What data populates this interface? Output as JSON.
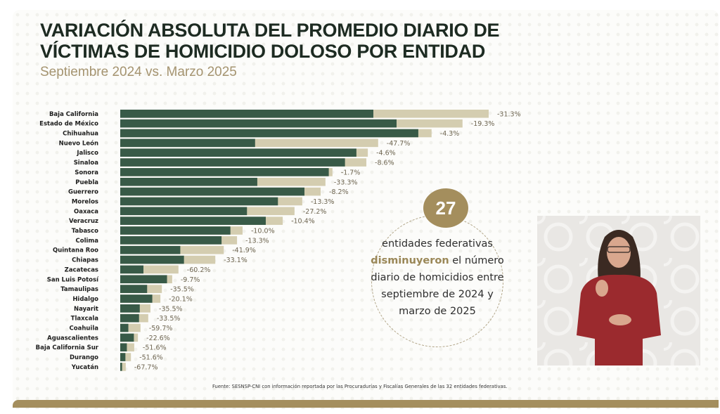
{
  "header": {
    "title_line1": "VARIACIÓN ABSOLUTA DEL PROMEDIO DIARIO DE",
    "title_line2": "VÍCTIMAS DE HOMICIDIO DOLOSO POR ENTIDAD",
    "subtitle": "Septiembre 2024 vs. Marzo 2025"
  },
  "chart_data": {
    "type": "bar",
    "orientation": "horizontal",
    "title": "Variación absoluta del promedio diario de víctimas de homicidio doloso por entidad",
    "subtitle": "Septiembre 2024 vs. Marzo 2025",
    "xlabel": "",
    "ylabel": "",
    "value_units": "relative index (axis not labeled; Baja California Sep 2024 = 100)",
    "xlim": [
      0,
      100
    ],
    "grid": false,
    "legend": "none",
    "categories": [
      "Baja California",
      "Estado de México",
      "Chihuahua",
      "Nuevo León",
      "Jalisco",
      "Sinaloa",
      "Sonora",
      "Puebla",
      "Guerrero",
      "Morelos",
      "Oaxaca",
      "Veracruz",
      "Tabasco",
      "Colima",
      "Quintana Roo",
      "Chiapas",
      "Zacatecas",
      "San Luis Potosí",
      "Tamaulipas",
      "Hidalgo",
      "Nayarit",
      "Tlaxcala",
      "Coahuila",
      "Aguascalientes",
      "Baja California Sur",
      "Durango",
      "Yucatán"
    ],
    "series": [
      {
        "name": "Septiembre 2024",
        "color": "#d4cdb0",
        "values": [
          100.0,
          92.9,
          84.5,
          70.0,
          67.2,
          66.8,
          57.6,
          55.7,
          54.4,
          49.4,
          47.3,
          44.1,
          33.2,
          31.7,
          28.1,
          25.8,
          15.8,
          14.1,
          11.3,
          10.9,
          8.2,
          7.6,
          5.5,
          4.8,
          3.8,
          2.9,
          1.5
        ]
      },
      {
        "name": "Marzo 2025",
        "color": "#385a47",
        "values": [
          68.7,
          75.0,
          80.9,
          36.6,
          64.1,
          61.0,
          56.6,
          37.2,
          50.0,
          42.8,
          34.4,
          39.5,
          29.9,
          27.5,
          16.3,
          17.3,
          6.3,
          12.7,
          7.3,
          8.7,
          5.3,
          5.1,
          2.2,
          3.7,
          1.8,
          1.4,
          0.5
        ]
      }
    ],
    "data_labels": [
      "-31.3%",
      "-19.3%",
      "-4.3%",
      "-47.7%",
      "-4.6%",
      "-8.6%",
      "-1.7%",
      "-33.3%",
      "-8.2%",
      "-13.3%",
      "-27.2%",
      "-10.4%",
      "-10.0%",
      "-13.3%",
      "-41.9%",
      "-33.1%",
      "-60.2%",
      "-9.7%",
      "-35.5%",
      "-20.1%",
      "-35.5%",
      "-33.5%",
      "-59.7%",
      "-22.6%",
      "-51.6%",
      "-51.6%",
      "-67.7%"
    ]
  },
  "callout": {
    "number": "27",
    "line1": "entidades federativas",
    "highlight": "disminuyeron",
    "line2_rest": " el número",
    "line3": "diario de homicidios entre",
    "line4": "septiembre de 2024 y",
    "line5": "marzo de 2025",
    "accent_color": "#a48e5d"
  },
  "video_inset": {
    "description": "sign-language-interpreter"
  },
  "footer": {
    "source": "Fuente: SESNSP-CNI con información reportada por las Procuradurías y Fiscalías Generales de las 32 entidades federativas."
  }
}
